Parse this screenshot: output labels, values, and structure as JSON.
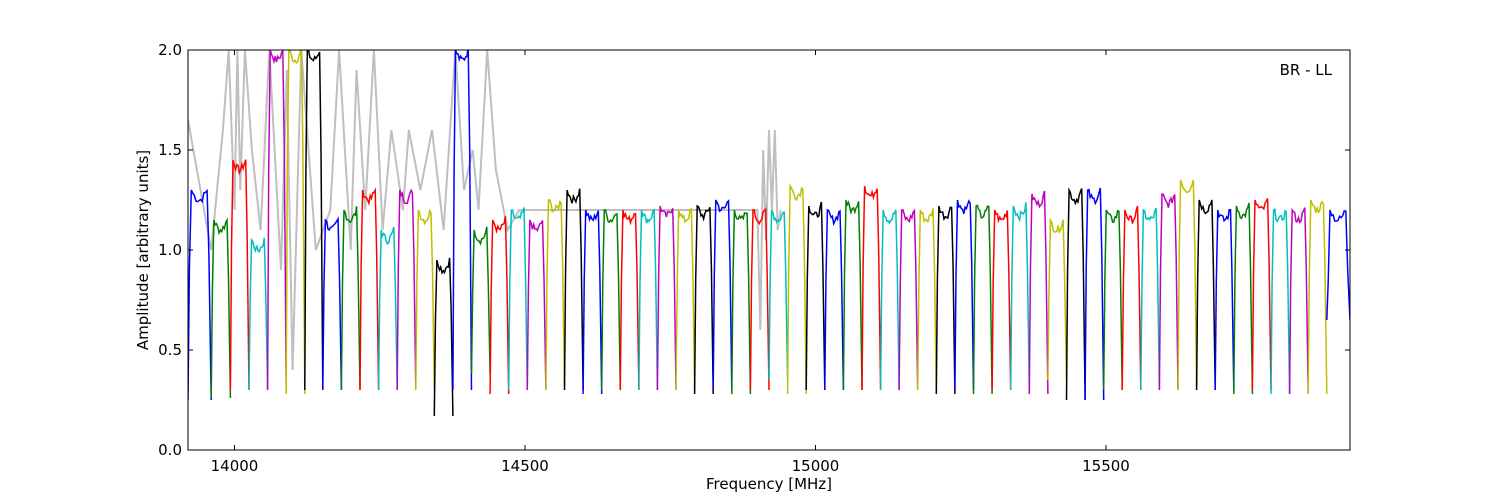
{
  "chart_data": {
    "type": "line",
    "title": "",
    "annotation": "BR - LL",
    "xlabel": "Frequency [MHz]",
    "ylabel": "Amplitude [arbitrary units]",
    "xlim": [
      13920,
      15920
    ],
    "ylim": [
      0,
      2.0
    ],
    "xticks": [
      14000,
      14500,
      15000,
      15500
    ],
    "xtick_labels": [
      "14000",
      "14500",
      "15000",
      "15500"
    ],
    "yticks": [
      0.0,
      0.5,
      1.0,
      1.5,
      2.0
    ],
    "ytick_labels": [
      "0.0",
      "0.5",
      "1.0",
      "1.5",
      "2.0"
    ],
    "grid": false,
    "background_trace": {
      "color": "#bfbfbf",
      "x": [
        13920,
        13960,
        13980,
        13990,
        14000,
        14005,
        14010,
        14018,
        14030,
        14045,
        14060,
        14080,
        14090,
        14100,
        14115,
        14140,
        14165,
        14180,
        14200,
        14210,
        14225,
        14240,
        14255,
        14270,
        14290,
        14300,
        14320,
        14340,
        14360,
        14380,
        14395,
        14410,
        14420,
        14435,
        14450,
        14470,
        14490,
        14900,
        14905,
        14910,
        14915,
        14920,
        14925,
        14930,
        14935,
        14940
      ],
      "y": [
        1.65,
        1.0,
        1.6,
        2.0,
        1.2,
        2.0,
        1.3,
        2.0,
        1.5,
        1.1,
        2.0,
        0.9,
        1.9,
        0.4,
        2.0,
        1.0,
        1.2,
        2.0,
        1.0,
        1.9,
        1.2,
        2.0,
        1.1,
        1.6,
        1.2,
        1.6,
        1.3,
        1.6,
        1.1,
        2.0,
        1.3,
        1.5,
        1.2,
        2.0,
        1.4,
        1.1,
        1.2,
        1.2,
        0.6,
        1.5,
        1.05,
        1.6,
        1.2,
        1.6,
        1.1,
        1.2
      ]
    },
    "channels": {
      "start_mhz": [
        13920,
        13960,
        13993,
        14025,
        14057,
        14089,
        14121,
        14152,
        14184,
        14216,
        14248,
        14280,
        14312,
        14344,
        14376,
        14408,
        14440,
        14472,
        14504,
        14536,
        14568,
        14600,
        14632,
        14664,
        14696,
        14728,
        14760,
        14792,
        14824,
        14856,
        14888,
        14920,
        14952,
        14984,
        15016,
        15048,
        15080,
        15112,
        15144,
        15176,
        15208,
        15240,
        15272,
        15304,
        15336,
        15368,
        15400,
        15432,
        15464,
        15496,
        15528,
        15560,
        15592,
        15624,
        15656,
        15688,
        15720,
        15752,
        15784,
        15816,
        15848,
        15880
      ],
      "end_mhz": [
        13960,
        13993,
        14025,
        14057,
        14089,
        14121,
        14152,
        14184,
        14216,
        14248,
        14280,
        14312,
        14344,
        14376,
        14408,
        14440,
        14472,
        14504,
        14536,
        14568,
        14600,
        14632,
        14664,
        14696,
        14728,
        14760,
        14792,
        14824,
        14856,
        14888,
        14920,
        14952,
        14984,
        15016,
        15048,
        15080,
        15112,
        15144,
        15176,
        15208,
        15240,
        15272,
        15304,
        15336,
        15368,
        15400,
        15432,
        15464,
        15496,
        15528,
        15560,
        15592,
        15624,
        15656,
        15688,
        15720,
        15752,
        15784,
        15816,
        15848,
        15880,
        15920
      ],
      "plateau": [
        1.3,
        1.15,
        1.45,
        1.05,
        2.0,
        2.0,
        2.0,
        1.15,
        1.2,
        1.3,
        1.1,
        1.3,
        1.2,
        0.95,
        2.0,
        1.1,
        1.15,
        1.2,
        1.15,
        1.25,
        1.3,
        1.2,
        1.2,
        1.2,
        1.2,
        1.22,
        1.2,
        1.22,
        1.25,
        1.2,
        1.2,
        1.2,
        1.32,
        1.22,
        1.2,
        1.25,
        1.32,
        1.2,
        1.2,
        1.2,
        1.22,
        1.25,
        1.22,
        1.2,
        1.22,
        1.28,
        1.15,
        1.3,
        1.3,
        1.2,
        1.2,
        1.2,
        1.28,
        1.35,
        1.25,
        1.2,
        1.22,
        1.25,
        1.2,
        1.2,
        1.25,
        1.2
      ],
      "min": [
        0.25,
        0.26,
        0.3,
        0.3,
        0.3,
        0.28,
        0.3,
        0.3,
        0.3,
        0.3,
        0.3,
        0.3,
        0.3,
        0.17,
        0.3,
        0.38,
        0.28,
        0.3,
        0.3,
        0.3,
        0.3,
        0.28,
        0.3,
        0.3,
        0.3,
        0.3,
        0.3,
        0.28,
        0.3,
        0.28,
        0.3,
        0.35,
        0.28,
        0.3,
        0.3,
        0.3,
        0.3,
        0.3,
        0.3,
        0.3,
        0.28,
        0.3,
        0.28,
        0.3,
        0.3,
        0.28,
        0.35,
        0.25,
        0.25,
        0.3,
        0.3,
        0.3,
        0.3,
        0.3,
        0.3,
        0.3,
        0.28,
        0.3,
        0.28,
        0.28,
        0.28,
        0.65
      ],
      "color": [
        "#0000ff",
        "#008000",
        "#ff0000",
        "#00bfbf",
        "#bf00bf",
        "#bfbf00",
        "#000000",
        "#0000ff",
        "#008000",
        "#ff0000",
        "#00bfbf",
        "#bf00bf",
        "#bfbf00",
        "#000000",
        "#0000ff",
        "#008000",
        "#ff0000",
        "#00bfbf",
        "#bf00bf",
        "#bfbf00",
        "#000000",
        "#0000ff",
        "#008000",
        "#ff0000",
        "#00bfbf",
        "#bf00bf",
        "#bfbf00",
        "#000000",
        "#0000ff",
        "#008000",
        "#ff0000",
        "#00bfbf",
        "#bfbf00",
        "#000000",
        "#0000ff",
        "#008000",
        "#ff0000",
        "#00bfbf",
        "#bf00bf",
        "#bfbf00",
        "#000000",
        "#0000ff",
        "#008000",
        "#ff0000",
        "#00bfbf",
        "#bf00bf",
        "#bfbf00",
        "#000000",
        "#0000ff",
        "#008000",
        "#ff0000",
        "#00bfbf",
        "#bf00bf",
        "#bfbf00",
        "#000000",
        "#0000ff",
        "#008000",
        "#ff0000",
        "#00bfbf",
        "#bf00bf",
        "#bfbf00",
        "#0000ff"
      ]
    }
  }
}
